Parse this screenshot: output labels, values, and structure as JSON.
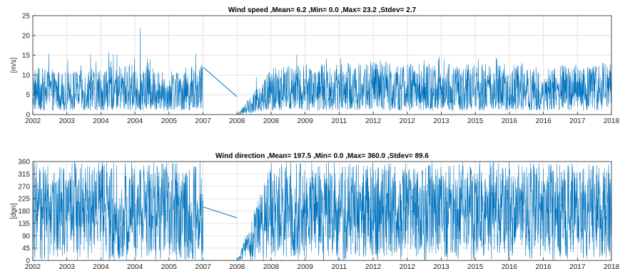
{
  "chart_data": [
    {
      "type": "line",
      "title": "Wind speed ,Mean= 6.2 ,Min= 0.0 ,Max= 23.2 ,Stdev= 2.7",
      "xlabel": "",
      "ylabel": "[m/s]",
      "ylim": [
        0,
        25
      ],
      "yticks": [
        0,
        5,
        10,
        15,
        20,
        25
      ],
      "xticks": [
        "2002",
        "2003",
        "2004",
        "2004",
        "2005",
        "2007",
        "2008",
        "2008",
        "2009",
        "2011",
        "2012",
        "2012",
        "2013",
        "2015",
        "2016",
        "2016",
        "2017",
        "2018"
      ],
      "grid": true,
      "color": "#0072BD",
      "summary": {
        "mean": 6.2,
        "min": 0.0,
        "max": 23.2,
        "stdev": 2.7
      },
      "gap": {
        "from_tick": "2007",
        "to_tick": "2008",
        "start_value": 12.0,
        "end_value": 4.5
      },
      "envelope": {
        "x": [
          "2002",
          "2003",
          "2004",
          "2004",
          "2005",
          "2007",
          "2008",
          "2008",
          "2009",
          "2011",
          "2012",
          "2012",
          "2013",
          "2015",
          "2016",
          "2016",
          "2017",
          "2018"
        ],
        "typical_low": [
          1,
          1,
          1,
          1,
          1,
          1,
          null,
          1,
          1,
          1,
          1,
          1,
          1,
          1,
          1,
          1,
          1,
          1
        ],
        "typical_high": [
          12,
          11,
          12,
          13,
          11,
          13,
          null,
          12,
          13,
          13,
          14,
          13,
          13,
          13,
          13,
          12,
          13,
          13
        ],
        "peak": [
          18.5,
          14.5,
          15.5,
          23.2,
          15,
          17.5,
          null,
          15,
          15.5,
          15,
          17,
          15.5,
          15,
          14.5,
          15,
          14.5,
          16,
          15
        ]
      }
    },
    {
      "type": "line",
      "title": "Wind direction ,Mean= 197.5 ,Min= 0.0 ,Max= 360.0 ,Stdev= 89.6",
      "xlabel": "",
      "ylabel": "[dgn]",
      "ylim": [
        0,
        360
      ],
      "yticks": [
        0,
        45,
        90,
        135,
        180,
        225,
        270,
        315,
        360
      ],
      "xticks": [
        "2002",
        "2003",
        "2004",
        "2004",
        "2005",
        "2007",
        "2008",
        "2008",
        "2009",
        "2011",
        "2012",
        "2012",
        "2013",
        "2015",
        "2016",
        "2016",
        "2017",
        "2018"
      ],
      "grid": true,
      "color": "#0072BD",
      "summary": {
        "mean": 197.5,
        "min": 0.0,
        "max": 360.0,
        "stdev": 89.6
      },
      "gap": {
        "from_tick": "2007",
        "to_tick": "2008",
        "start_value": 195,
        "end_value": 155
      },
      "envelope": {
        "x": [
          "2002",
          "2003",
          "2004",
          "2004",
          "2005",
          "2007",
          "2008",
          "2008",
          "2009",
          "2011",
          "2012",
          "2012",
          "2013",
          "2015",
          "2016",
          "2016",
          "2017",
          "2018"
        ],
        "typical_low": [
          0,
          0,
          0,
          0,
          0,
          0,
          null,
          0,
          0,
          0,
          0,
          0,
          0,
          0,
          0,
          0,
          0,
          0
        ],
        "typical_high": [
          360,
          360,
          360,
          360,
          360,
          360,
          null,
          360,
          360,
          360,
          360,
          360,
          360,
          360,
          360,
          360,
          360,
          360
        ],
        "peak": [
          360,
          360,
          360,
          360,
          360,
          360,
          null,
          360,
          360,
          360,
          360,
          360,
          360,
          360,
          360,
          360,
          360,
          360
        ]
      }
    }
  ]
}
